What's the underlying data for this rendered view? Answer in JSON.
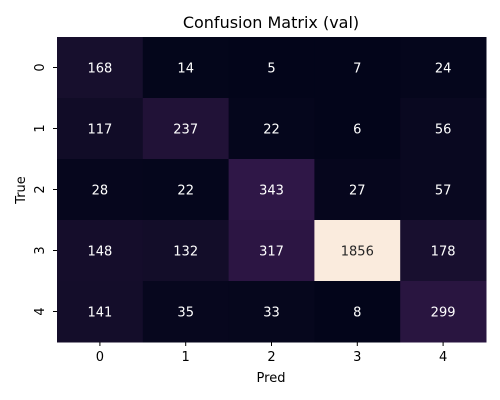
{
  "chart_data": {
    "type": "heatmap",
    "title": "Confusion Matrix (val)",
    "xlabel": "Pred",
    "ylabel": "True",
    "x_categories": [
      "0",
      "1",
      "2",
      "3",
      "4"
    ],
    "y_categories": [
      "0",
      "1",
      "2",
      "3",
      "4"
    ],
    "values": [
      [
        168,
        14,
        5,
        7,
        24
      ],
      [
        117,
        237,
        22,
        6,
        56
      ],
      [
        28,
        22,
        343,
        27,
        57
      ],
      [
        148,
        132,
        317,
        1856,
        178
      ],
      [
        141,
        35,
        33,
        8,
        299
      ]
    ],
    "colormap": "rocket",
    "colorbar": false,
    "annotate": true
  }
}
